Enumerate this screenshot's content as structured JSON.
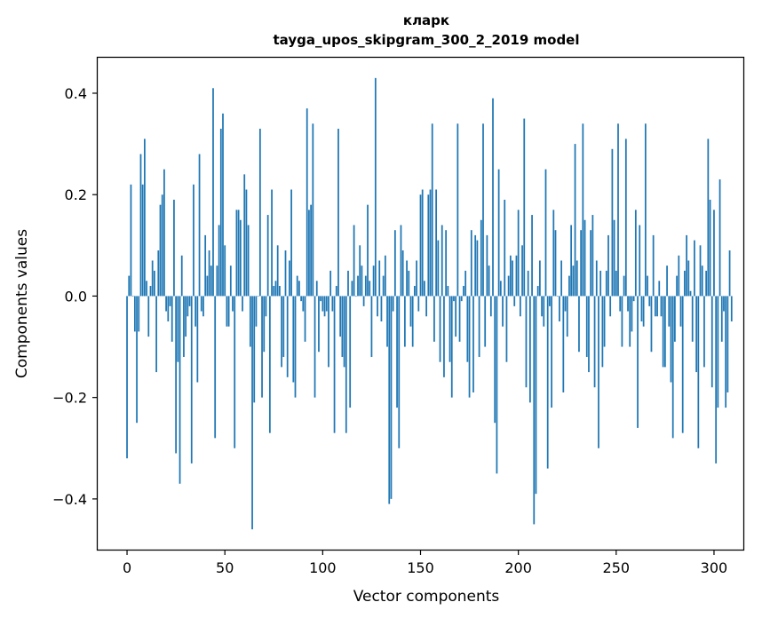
{
  "chart_data": {
    "type": "bar",
    "title": "кларк",
    "subtitle": "tayga_upos_skipgram_300_2_2019 model",
    "xlabel": "Vector components",
    "ylabel": "Components values",
    "xlim": [
      -15,
      315
    ],
    "ylim": [
      -0.5,
      0.47
    ],
    "x_ticks": [
      0,
      50,
      100,
      150,
      200,
      250,
      300
    ],
    "x_tick_labels": [
      "0",
      "50",
      "100",
      "150",
      "200",
      "250",
      "300"
    ],
    "y_ticks": [
      -0.4,
      -0.2,
      0.0,
      0.2,
      0.4
    ],
    "y_tick_labels": [
      "−0.4",
      "−0.2",
      "0.0",
      "0.2",
      "0.4"
    ],
    "bar_color": "#1f77b4",
    "values": [
      -0.32,
      0.04,
      0.22,
      0.0,
      -0.07,
      -0.25,
      -0.07,
      0.28,
      0.22,
      0.31,
      0.03,
      -0.08,
      0.02,
      0.07,
      0.05,
      -0.15,
      0.09,
      0.18,
      0.2,
      0.25,
      -0.03,
      -0.05,
      -0.02,
      -0.09,
      0.19,
      -0.31,
      -0.13,
      -0.37,
      0.08,
      -0.12,
      -0.08,
      -0.04,
      -0.02,
      -0.33,
      0.22,
      -0.06,
      -0.17,
      0.28,
      -0.03,
      -0.04,
      0.12,
      0.04,
      0.09,
      0.06,
      0.41,
      -0.28,
      0.06,
      0.14,
      0.33,
      0.36,
      0.1,
      -0.06,
      -0.06,
      0.06,
      -0.03,
      -0.3,
      0.17,
      0.17,
      0.15,
      -0.03,
      0.24,
      0.21,
      0.14,
      -0.1,
      -0.46,
      -0.21,
      -0.06,
      0.0,
      0.33,
      -0.2,
      -0.11,
      -0.04,
      0.16,
      -0.27,
      0.21,
      0.02,
      0.03,
      0.1,
      0.02,
      -0.14,
      -0.12,
      0.09,
      -0.16,
      0.07,
      0.21,
      -0.17,
      -0.2,
      0.04,
      0.03,
      -0.01,
      -0.03,
      -0.09,
      0.37,
      0.17,
      0.18,
      0.34,
      -0.2,
      0.03,
      -0.11,
      -0.01,
      -0.03,
      -0.04,
      -0.03,
      -0.14,
      0.05,
      -0.03,
      -0.27,
      0.02,
      0.33,
      -0.08,
      -0.12,
      -0.14,
      -0.27,
      0.05,
      -0.22,
      0.03,
      0.14,
      0.0,
      0.04,
      0.1,
      0.06,
      -0.02,
      0.04,
      0.18,
      0.03,
      -0.12,
      0.06,
      0.43,
      -0.04,
      0.07,
      -0.05,
      0.04,
      0.08,
      -0.1,
      -0.41,
      -0.4,
      -0.03,
      0.13,
      -0.22,
      -0.3,
      0.14,
      0.09,
      -0.1,
      0.07,
      0.05,
      -0.06,
      -0.1,
      0.02,
      0.07,
      -0.03,
      0.2,
      0.21,
      0.03,
      -0.04,
      0.2,
      0.21,
      0.34,
      -0.09,
      0.21,
      0.11,
      -0.13,
      0.14,
      -0.16,
      0.13,
      0.02,
      -0.13,
      -0.2,
      -0.01,
      -0.08,
      0.34,
      -0.09,
      -0.01,
      0.02,
      0.05,
      -0.13,
      -0.2,
      0.13,
      -0.19,
      0.12,
      0.11,
      -0.12,
      0.15,
      0.34,
      -0.1,
      0.12,
      0.06,
      -0.04,
      0.39,
      -0.25,
      -0.35,
      0.25,
      0.03,
      -0.06,
      0.19,
      -0.13,
      0.04,
      0.08,
      0.07,
      -0.02,
      0.08,
      0.17,
      -0.04,
      0.1,
      0.35,
      -0.18,
      0.05,
      -0.21,
      0.16,
      -0.45,
      -0.39,
      0.02,
      0.07,
      -0.04,
      -0.06,
      0.25,
      -0.34,
      -0.02,
      -0.22,
      0.17,
      0.13,
      0.0,
      -0.05,
      0.07,
      -0.19,
      -0.03,
      -0.08,
      0.04,
      0.14,
      0.06,
      0.3,
      0.07,
      -0.11,
      0.13,
      0.34,
      0.15,
      -0.12,
      -0.15,
      0.13,
      0.16,
      -0.18,
      0.07,
      -0.3,
      0.05,
      -0.14,
      -0.1,
      0.05,
      0.12,
      -0.04,
      0.29,
      0.15,
      0.05,
      0.34,
      -0.03,
      -0.1,
      0.04,
      0.31,
      -0.03,
      -0.1,
      -0.07,
      -0.01,
      0.17,
      -0.26,
      0.14,
      -0.05,
      -0.06,
      0.34,
      0.04,
      -0.02,
      -0.11,
      0.12,
      -0.04,
      -0.04,
      0.03,
      -0.04,
      -0.14,
      -0.14,
      0.06,
      -0.06,
      -0.17,
      -0.28,
      -0.09,
      0.04,
      0.08,
      -0.06,
      -0.27,
      0.05,
      0.12,
      0.07,
      0.01,
      -0.09,
      0.11,
      -0.15,
      -0.3,
      0.1,
      0.06,
      -0.14,
      0.05,
      0.31,
      0.19,
      -0.18,
      0.17,
      -0.33,
      -0.22,
      0.23,
      -0.09,
      -0.03,
      -0.22,
      -0.19,
      0.09,
      -0.05
    ]
  }
}
